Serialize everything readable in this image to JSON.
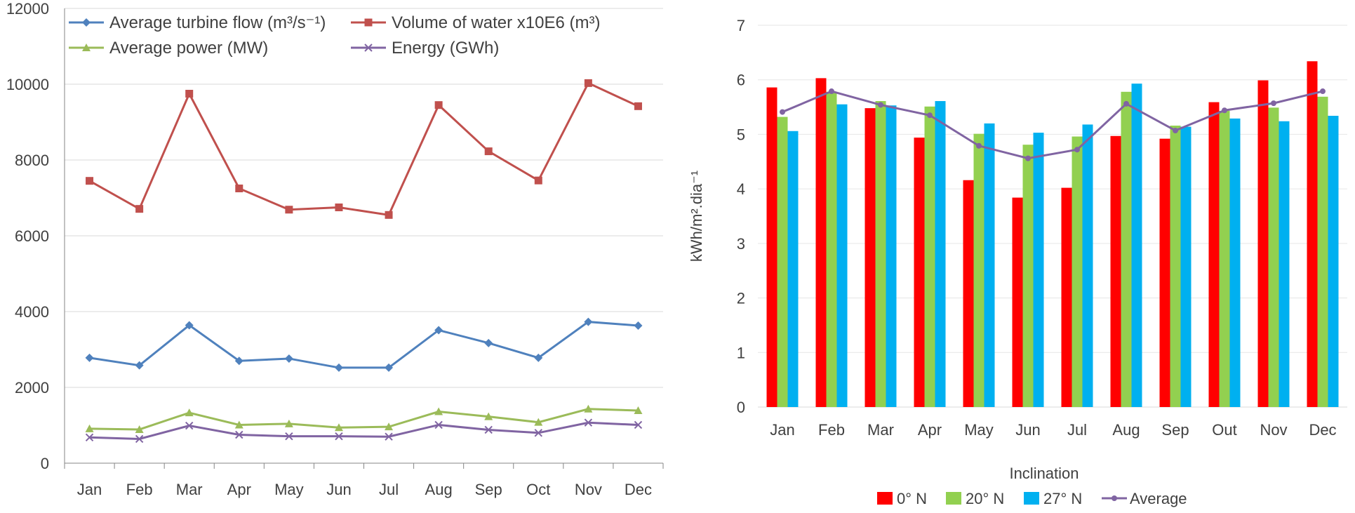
{
  "chart_data": [
    {
      "type": "line",
      "categories": [
        "Jan",
        "Feb",
        "Mar",
        "Apr",
        "May",
        "Jun",
        "Jul",
        "Aug",
        "Sep",
        "Oct",
        "Nov",
        "Dec"
      ],
      "ylim": [
        0,
        12000
      ],
      "yticks": [
        0,
        2000,
        4000,
        6000,
        8000,
        10000,
        12000
      ],
      "grid": true,
      "legend": "top-inside",
      "series": [
        {
          "name": "Average turbine flow (m³/s⁻¹)",
          "color": "#4f81bd",
          "marker": "diamond",
          "values": [
            2780,
            2580,
            3640,
            2700,
            2760,
            2520,
            2520,
            3510,
            3170,
            2780,
            3730,
            3630
          ]
        },
        {
          "name": "Volume of water x10E6 (m³)",
          "color": "#c0504d",
          "marker": "square",
          "values": [
            7450,
            6710,
            9750,
            7250,
            6690,
            6750,
            6550,
            9450,
            8230,
            7460,
            10030,
            9420
          ]
        },
        {
          "name": "Average power (MW)",
          "color": "#9bbb59",
          "marker": "triangle",
          "values": [
            910,
            890,
            1330,
            1010,
            1040,
            940,
            960,
            1360,
            1230,
            1080,
            1430,
            1390
          ]
        },
        {
          "name": "Energy (GWh)",
          "color": "#8064a2",
          "marker": "x",
          "values": [
            680,
            640,
            990,
            750,
            710,
            710,
            700,
            1010,
            880,
            800,
            1070,
            1010
          ]
        }
      ]
    },
    {
      "type": "bar",
      "categories": [
        "Jan",
        "Feb",
        "Mar",
        "Apr",
        "May",
        "Jun",
        "Jul",
        "Aug",
        "Sep",
        "Out",
        "Nov",
        "Dec"
      ],
      "xlabel": "Inclination",
      "ylabel": "kWh/m².dia⁻¹",
      "ylim": [
        0,
        7
      ],
      "yticks": [
        0,
        1,
        2,
        3,
        4,
        5,
        6,
        7
      ],
      "grid": true,
      "legend": "bottom",
      "series": [
        {
          "name": "0° N",
          "color": "#ff0000",
          "values": [
            5.86,
            6.03,
            5.48,
            4.94,
            4.16,
            3.84,
            4.02,
            4.97,
            4.92,
            5.59,
            5.99,
            6.34
          ]
        },
        {
          "name": "20° N",
          "color": "#92d050",
          "values": [
            5.32,
            5.78,
            5.61,
            5.51,
            5.01,
            4.81,
            4.96,
            5.78,
            5.16,
            5.43,
            5.49,
            5.69
          ]
        },
        {
          "name": "27° N",
          "color": "#00b0f0",
          "values": [
            5.06,
            5.55,
            5.53,
            5.61,
            5.2,
            5.03,
            5.18,
            5.93,
            5.14,
            5.29,
            5.24,
            5.34
          ]
        }
      ],
      "average_line": {
        "name": "Average",
        "color": "#8064a2",
        "values": [
          5.41,
          5.79,
          5.54,
          5.35,
          4.79,
          4.56,
          4.72,
          5.56,
          5.07,
          5.44,
          5.57,
          5.79
        ]
      }
    }
  ]
}
